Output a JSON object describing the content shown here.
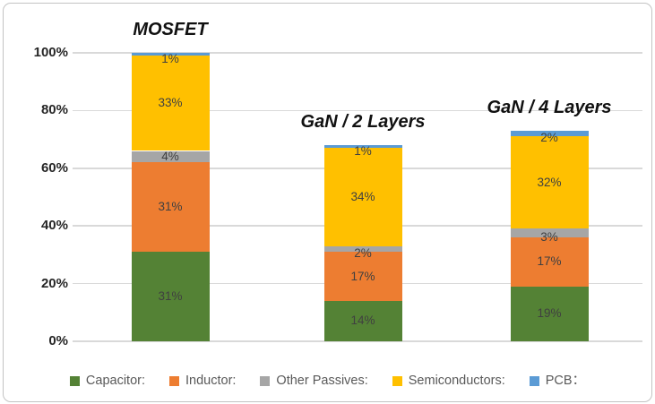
{
  "chart_data": {
    "type": "bar",
    "stacked": true,
    "categories": [
      "MOSFET",
      "GaN / 2 Layers",
      "GaN / 4 Layers"
    ],
    "series": [
      {
        "name": "Capacitor:",
        "color": "#548235",
        "values": [
          31,
          14,
          19
        ]
      },
      {
        "name": "Inductor:",
        "color": "#ED7D31",
        "values": [
          31,
          17,
          17
        ]
      },
      {
        "name": "Other Passives:",
        "color": "#A6A6A6",
        "values": [
          4,
          2,
          3
        ]
      },
      {
        "name": "Semiconductors:",
        "color": "#FFC000",
        "values": [
          33,
          34,
          32
        ]
      },
      {
        "name": "PCB：",
        "color": "#5B9BD5",
        "values": [
          1,
          1,
          2
        ]
      }
    ],
    "totals": [
      100,
      68,
      73
    ],
    "data_label_suffix": "%",
    "y_axis": {
      "min": 0,
      "max": 100,
      "ticks": [
        0,
        20,
        40,
        60,
        80,
        100
      ],
      "tick_labels": [
        "0%",
        "20%",
        "40%",
        "60%",
        "80%",
        "100%"
      ]
    },
    "grid": true,
    "legend_position": "bottom"
  },
  "colors": {
    "gridline": "#D9D9D9",
    "data_label": "#404040",
    "axis_label": "#262626",
    "category_title": "#111111",
    "legend_text": "#595959",
    "frame_border": "#C3C3C3",
    "background": "#FFFFFF"
  }
}
